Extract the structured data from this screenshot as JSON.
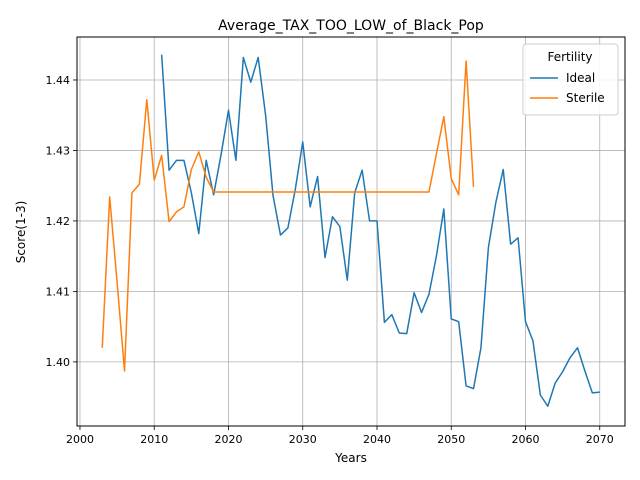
{
  "chart_data": {
    "type": "line",
    "title": "Average_TAX_TOO_LOW_of_Black_Pop",
    "xlabel": "Years",
    "ylabel": "Score(1-3)",
    "xlim": [
      1999.6,
      2073.4
    ],
    "ylim": [
      1.3909,
      1.4461
    ],
    "xticks": [
      2000,
      2010,
      2020,
      2030,
      2040,
      2050,
      2060,
      2070
    ],
    "yticks": [
      1.4,
      1.41,
      1.42,
      1.43,
      1.44
    ],
    "ytick_labels": [
      "1.40",
      "1.41",
      "1.42",
      "1.43",
      "1.44"
    ],
    "grid": true,
    "legend": {
      "title": "Fertility",
      "placement": "top-right"
    },
    "series": [
      {
        "name": "Ideal",
        "color": "#1f77b4",
        "x": [
          2011,
          2012,
          2013,
          2014,
          2015,
          2016,
          2017,
          2018,
          2019,
          2020,
          2021,
          2022,
          2023,
          2024,
          2025,
          2026,
          2027,
          2028,
          2029,
          2030,
          2031,
          2032,
          2033,
          2034,
          2035,
          2036,
          2037,
          2038,
          2039,
          2040,
          2041,
          2042,
          2043,
          2044,
          2045,
          2046,
          2047,
          2048,
          2049,
          2050,
          2051,
          2052,
          2053,
          2054,
          2055,
          2056,
          2057,
          2058,
          2059,
          2060,
          2061,
          2062,
          2063,
          2064,
          2065,
          2066,
          2067,
          2068,
          2069,
          2070
        ],
        "y": [
          1.4436,
          1.4272,
          1.4286,
          1.4286,
          1.424,
          1.4182,
          1.4286,
          1.4237,
          1.4294,
          1.4357,
          1.4286,
          1.4432,
          1.4397,
          1.4432,
          1.435,
          1.4236,
          1.418,
          1.419,
          1.4245,
          1.4312,
          1.422,
          1.4263,
          1.4148,
          1.4206,
          1.4192,
          1.4116,
          1.424,
          1.4272,
          1.42,
          1.42,
          1.4056,
          1.4067,
          1.4041,
          1.404,
          1.4098,
          1.407,
          1.4096,
          1.415,
          1.4217,
          1.4061,
          1.4057,
          1.3966,
          1.3962,
          1.402,
          1.4162,
          1.4226,
          1.4273,
          1.4167,
          1.4176,
          1.4057,
          1.403,
          1.3953,
          1.3937,
          1.397,
          1.3986,
          1.4006,
          1.402,
          1.3987,
          1.3956,
          1.3957
        ]
      },
      {
        "name": "Sterile",
        "color": "#ff7f0e",
        "x": [
          2003,
          2004,
          2005,
          2006,
          2007,
          2008,
          2009,
          2010,
          2011,
          2012,
          2013,
          2014,
          2015,
          2016,
          2017,
          2018,
          2019,
          2020,
          2021,
          2022,
          2023,
          2024,
          2025,
          2026,
          2027,
          2028,
          2029,
          2030,
          2031,
          2032,
          2033,
          2034,
          2035,
          2036,
          2037,
          2038,
          2039,
          2040,
          2041,
          2042,
          2043,
          2044,
          2045,
          2046,
          2047,
          2048,
          2049,
          2050,
          2051,
          2052,
          2053
        ],
        "y": [
          1.402,
          1.4234,
          1.4113,
          1.3987,
          1.424,
          1.4252,
          1.4372,
          1.4258,
          1.4293,
          1.4199,
          1.4213,
          1.422,
          1.4273,
          1.4298,
          1.4262,
          1.4241,
          1.4241,
          1.4241,
          1.4241,
          1.4241,
          1.4241,
          1.4241,
          1.4241,
          1.4241,
          1.4241,
          1.4241,
          1.4241,
          1.4241,
          1.4241,
          1.4241,
          1.4241,
          1.4241,
          1.4241,
          1.4241,
          1.4241,
          1.4241,
          1.4241,
          1.4241,
          1.4241,
          1.4241,
          1.4241,
          1.4241,
          1.4241,
          1.4241,
          1.4241,
          1.4295,
          1.4348,
          1.426,
          1.4237,
          1.4427,
          1.4248
        ]
      }
    ]
  }
}
